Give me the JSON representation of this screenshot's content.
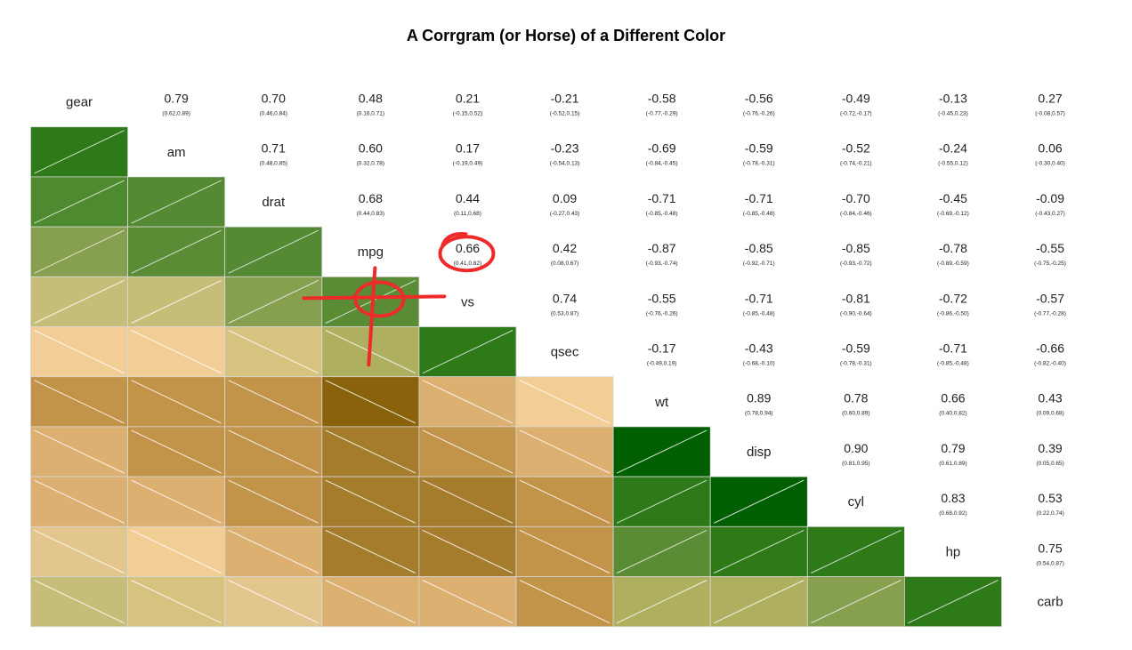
{
  "chart_data": {
    "type": "heatmap",
    "title": "A Corrgram (or Horse) of a Different Color",
    "variables": [
      "gear",
      "am",
      "drat",
      "mpg",
      "vs",
      "qsec",
      "wt",
      "disp",
      "cyl",
      "hp",
      "carb"
    ],
    "upper_cells": [
      {
        "row": "gear",
        "col": "am",
        "r": "0.79",
        "ci": "(0.62,0.89)"
      },
      {
        "row": "gear",
        "col": "drat",
        "r": "0.70",
        "ci": "(0.46,0.84)"
      },
      {
        "row": "gear",
        "col": "mpg",
        "r": "0.48",
        "ci": "(0.16,0.71)"
      },
      {
        "row": "gear",
        "col": "vs",
        "r": "0.21",
        "ci": "(-0.15,0.52)"
      },
      {
        "row": "gear",
        "col": "qsec",
        "r": "-0.21",
        "ci": "(-0.52,0.15)"
      },
      {
        "row": "gear",
        "col": "wt",
        "r": "-0.58",
        "ci": "(-0.77,-0.29)"
      },
      {
        "row": "gear",
        "col": "disp",
        "r": "-0.56",
        "ci": "(-0.76,-0.26)"
      },
      {
        "row": "gear",
        "col": "cyl",
        "r": "-0.49",
        "ci": "(-0.72,-0.17)"
      },
      {
        "row": "gear",
        "col": "hp",
        "r": "-0.13",
        "ci": "(-0.45,0.23)"
      },
      {
        "row": "gear",
        "col": "carb",
        "r": "0.27",
        "ci": "(-0.08,0.57)"
      },
      {
        "row": "am",
        "col": "drat",
        "r": "0.71",
        "ci": "(0.48,0.85)"
      },
      {
        "row": "am",
        "col": "mpg",
        "r": "0.60",
        "ci": "(0.32,0.78)"
      },
      {
        "row": "am",
        "col": "vs",
        "r": "0.17",
        "ci": "(-0.19,0.49)"
      },
      {
        "row": "am",
        "col": "qsec",
        "r": "-0.23",
        "ci": "(-0.54,0.13)"
      },
      {
        "row": "am",
        "col": "wt",
        "r": "-0.69",
        "ci": "(-0.84,-0.45)"
      },
      {
        "row": "am",
        "col": "disp",
        "r": "-0.59",
        "ci": "(-0.78,-0.31)"
      },
      {
        "row": "am",
        "col": "cyl",
        "r": "-0.52",
        "ci": "(-0.74,-0.21)"
      },
      {
        "row": "am",
        "col": "hp",
        "r": "-0.24",
        "ci": "(-0.55,0.12)"
      },
      {
        "row": "am",
        "col": "carb",
        "r": "0.06",
        "ci": "(-0.30,0.40)"
      },
      {
        "row": "drat",
        "col": "mpg",
        "r": "0.68",
        "ci": "(0.44,0.83)"
      },
      {
        "row": "drat",
        "col": "vs",
        "r": "0.44",
        "ci": "(0.11,0.68)"
      },
      {
        "row": "drat",
        "col": "qsec",
        "r": "0.09",
        "ci": "(-0.27,0.43)"
      },
      {
        "row": "drat",
        "col": "wt",
        "r": "-0.71",
        "ci": "(-0.85,-0.48)"
      },
      {
        "row": "drat",
        "col": "disp",
        "r": "-0.71",
        "ci": "(-0.85,-0.48)"
      },
      {
        "row": "drat",
        "col": "cyl",
        "r": "-0.70",
        "ci": "(-0.84,-0.46)"
      },
      {
        "row": "drat",
        "col": "hp",
        "r": "-0.45",
        "ci": "(-0.69,-0.12)"
      },
      {
        "row": "drat",
        "col": "carb",
        "r": "-0.09",
        "ci": "(-0.43,0.27)"
      },
      {
        "row": "mpg",
        "col": "vs",
        "r": "0.66",
        "ci": "(0.41,0.82)"
      },
      {
        "row": "mpg",
        "col": "qsec",
        "r": "0.42",
        "ci": "(0.08,0.67)"
      },
      {
        "row": "mpg",
        "col": "wt",
        "r": "-0.87",
        "ci": "(-0.93,-0.74)"
      },
      {
        "row": "mpg",
        "col": "disp",
        "r": "-0.85",
        "ci": "(-0.92,-0.71)"
      },
      {
        "row": "mpg",
        "col": "cyl",
        "r": "-0.85",
        "ci": "(-0.93,-0.72)"
      },
      {
        "row": "mpg",
        "col": "hp",
        "r": "-0.78",
        "ci": "(-0.89,-0.59)"
      },
      {
        "row": "mpg",
        "col": "carb",
        "r": "-0.55",
        "ci": "(-0.75,-0.25)"
      },
      {
        "row": "vs",
        "col": "qsec",
        "r": "0.74",
        "ci": "(0.53,0.87)"
      },
      {
        "row": "vs",
        "col": "wt",
        "r": "-0.55",
        "ci": "(-0.76,-0.26)"
      },
      {
        "row": "vs",
        "col": "disp",
        "r": "-0.71",
        "ci": "(-0.85,-0.48)"
      },
      {
        "row": "vs",
        "col": "cyl",
        "r": "-0.81",
        "ci": "(-0.90,-0.64)"
      },
      {
        "row": "vs",
        "col": "hp",
        "r": "-0.72",
        "ci": "(-0.86,-0.50)"
      },
      {
        "row": "vs",
        "col": "carb",
        "r": "-0.57",
        "ci": "(-0.77,-0.28)"
      },
      {
        "row": "qsec",
        "col": "wt",
        "r": "-0.17",
        "ci": "(-0.49,0.19)"
      },
      {
        "row": "qsec",
        "col": "disp",
        "r": "-0.43",
        "ci": "(-0.68,-0.10)"
      },
      {
        "row": "qsec",
        "col": "cyl",
        "r": "-0.59",
        "ci": "(-0.78,-0.31)"
      },
      {
        "row": "qsec",
        "col": "hp",
        "r": "-0.71",
        "ci": "(-0.85,-0.48)"
      },
      {
        "row": "qsec",
        "col": "carb",
        "r": "-0.66",
        "ci": "(-0.82,-0.40)"
      },
      {
        "row": "wt",
        "col": "disp",
        "r": "0.89",
        "ci": "(0.78,0.94)"
      },
      {
        "row": "wt",
        "col": "cyl",
        "r": "0.78",
        "ci": "(0.60,0.89)"
      },
      {
        "row": "wt",
        "col": "hp",
        "r": "0.66",
        "ci": "(0.40,0.82)"
      },
      {
        "row": "wt",
        "col": "carb",
        "r": "0.43",
        "ci": "(0.09,0.68)"
      },
      {
        "row": "disp",
        "col": "cyl",
        "r": "0.90",
        "ci": "(0.81,0.95)"
      },
      {
        "row": "disp",
        "col": "hp",
        "r": "0.79",
        "ci": "(0.61,0.89)"
      },
      {
        "row": "disp",
        "col": "carb",
        "r": "0.39",
        "ci": "(0.05,0.65)"
      },
      {
        "row": "cyl",
        "col": "hp",
        "r": "0.83",
        "ci": "(0.68,0.92)"
      },
      {
        "row": "cyl",
        "col": "carb",
        "r": "0.53",
        "ci": "(0.22,0.74)"
      },
      {
        "row": "hp",
        "col": "carb",
        "r": "0.75",
        "ci": "(0.54,0.87)"
      }
    ],
    "lower_colors": [
      [],
      [
        "#2e7a19"
      ],
      [
        "#4d8a30",
        "#548a33"
      ],
      [
        "#86a050",
        "#5a8c35",
        "#548a33"
      ],
      [
        "#c6be78",
        "#c6be78",
        "#86a050",
        "#5a8c35"
      ],
      [
        "#f3cd96",
        "#f3cd96",
        "#d6c37f",
        "#aeb060",
        "#2e7a19"
      ],
      [
        "#c29449",
        "#c29449",
        "#c29449",
        "#8a620c",
        "#dcb071",
        "#f3cd96"
      ],
      [
        "#dcb071",
        "#c29449",
        "#c29449",
        "#a57c2c",
        "#c29449",
        "#dcb071",
        "#005f00"
      ],
      [
        "#dcb071",
        "#dcb071",
        "#c29449",
        "#a57c2c",
        "#a57c2c",
        "#c29449",
        "#2e7a19",
        "#005f00"
      ],
      [
        "#e3c68e",
        "#f3cd96",
        "#dcb071",
        "#a57c2c",
        "#a57c2c",
        "#c29449",
        "#5a8c35",
        "#2e7a19",
        "#2e7a19"
      ],
      [
        "#c6be78",
        "#d6c37f",
        "#e3c68e",
        "#dcb071",
        "#dcb071",
        "#c29449",
        "#aeb060",
        "#aeb060",
        "#86a050",
        "#2e7a19"
      ]
    ],
    "annotation": {
      "highlighted_cell": {
        "row": "mpg",
        "col": "vs"
      },
      "cross_cell": {
        "row": "vs",
        "col": "mpg"
      },
      "color": "#ee2a2a"
    }
  }
}
